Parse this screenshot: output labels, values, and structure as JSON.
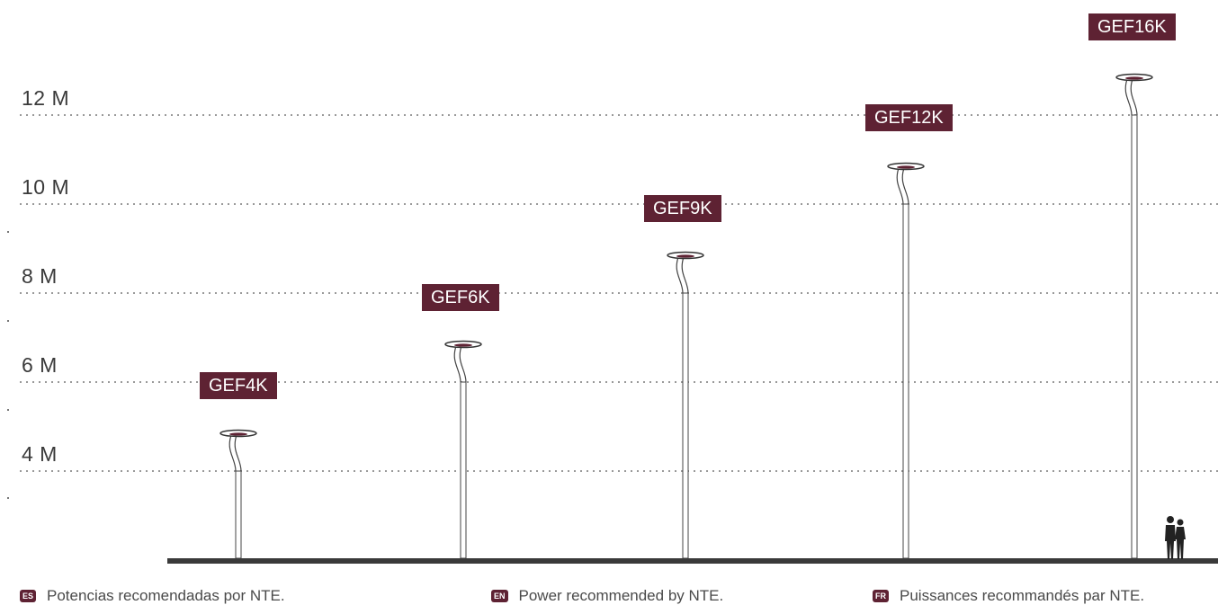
{
  "height_lines": [
    {
      "label": "12 M",
      "value": 12
    },
    {
      "label": "10 M",
      "value": 10
    },
    {
      "label": "8 M",
      "value": 8
    },
    {
      "label": "6 M",
      "value": 6
    },
    {
      "label": "4 M",
      "value": 4
    }
  ],
  "poles": [
    {
      "model": "GEF4K",
      "height_m": 4
    },
    {
      "model": "GEF6K",
      "height_m": 6
    },
    {
      "model": "GEF9K",
      "height_m": 8
    },
    {
      "model": "GEF12K",
      "height_m": 10
    },
    {
      "model": "GEF16K",
      "height_m": 12
    }
  ],
  "notes": [
    {
      "lang": "ES",
      "text": "Potencias recomendadas por NTE."
    },
    {
      "lang": "EN",
      "text": "Power recommended by NTE."
    },
    {
      "lang": "FR",
      "text": "Puissances recommandés par NTE."
    }
  ],
  "colors": {
    "label_bg": "#5e2233",
    "ground": "#3a3a3a",
    "guide": "#9a9a9a"
  }
}
